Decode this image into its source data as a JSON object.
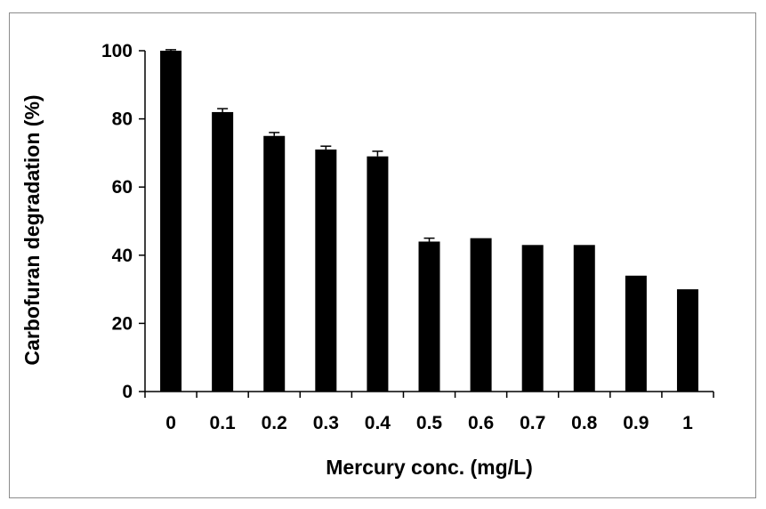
{
  "chart_data": {
    "type": "bar",
    "title": "",
    "xlabel": "Mercury conc. (mg/L)",
    "ylabel": "Carbofuran degradation (%)",
    "categories": [
      "0",
      "0.1",
      "0.2",
      "0.3",
      "0.4",
      "0.5",
      "0.6",
      "0.7",
      "0.8",
      "0.9",
      "1"
    ],
    "values": [
      100,
      82,
      75,
      71,
      69,
      44,
      45,
      43,
      43,
      34,
      30
    ],
    "errors": [
      0.3,
      1,
      1,
      1,
      1.5,
      1,
      0,
      0,
      0,
      0,
      0
    ],
    "ylim": [
      0,
      100
    ],
    "yticks": [
      0,
      20,
      40,
      60,
      80,
      100
    ],
    "grid": false,
    "bar_color": "#000000"
  }
}
